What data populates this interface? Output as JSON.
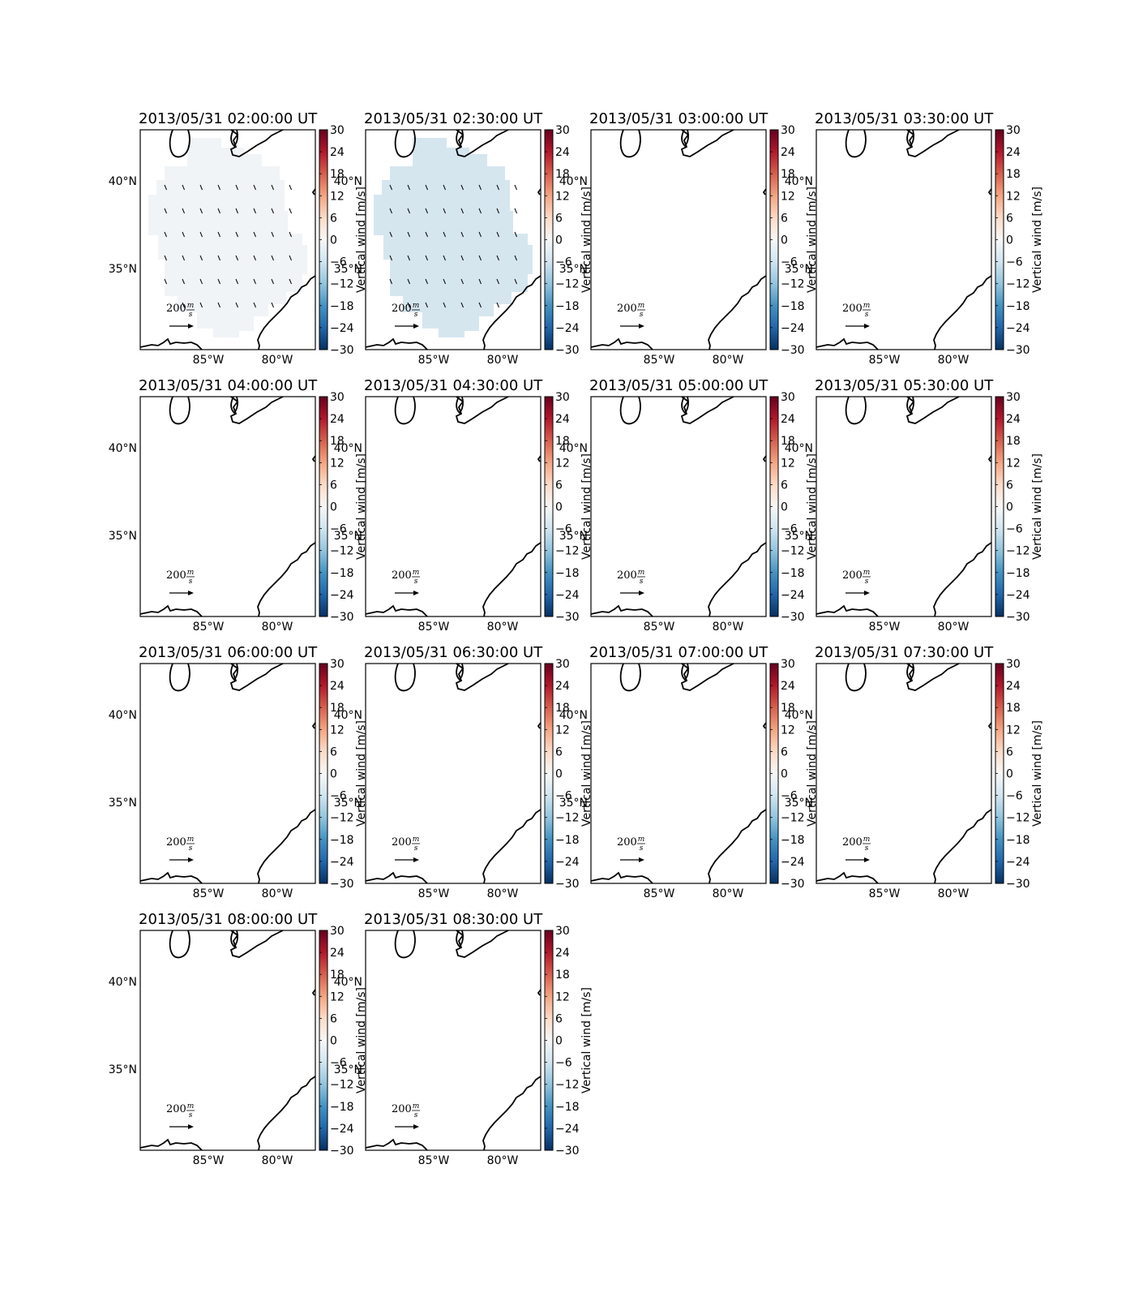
{
  "figure": {
    "colormap": "RdBu_r",
    "colormap_stops": [
      "#053061",
      "#2166ac",
      "#4393c3",
      "#92c5de",
      "#d1e5f0",
      "#f7f7f7",
      "#fddbc7",
      "#f4a582",
      "#d6604d",
      "#b2182b",
      "#67001f"
    ],
    "colorbar_ticks": [
      "30",
      "24",
      "18",
      "12",
      "6",
      "0",
      "−6",
      "−12",
      "−18",
      "−24",
      "−30"
    ],
    "colorbar_label": "Vertical wind [m/s]",
    "lat_ticks": [
      "40°N",
      "35°N"
    ],
    "lon_ticks": [
      "85°W",
      "80°W"
    ],
    "scale_value": "200",
    "scale_num": "m",
    "scale_den": "s",
    "field_colors": [
      "#f0f4f7",
      "#d6e6ef"
    ]
  },
  "chart_data": [
    {
      "type": "heatmap",
      "title": "2013/05/31 02:00:00 UT",
      "field": "weak negative vertical wind",
      "vertical_wind_mean": -1,
      "vectors": true
    },
    {
      "type": "heatmap",
      "title": "2013/05/31 02:30:00 UT",
      "field": "weak negative vertical wind",
      "vertical_wind_mean": -4,
      "vectors": true
    },
    {
      "type": "heatmap",
      "title": "2013/05/31 03:00:00 UT",
      "field": "none",
      "vectors": false
    },
    {
      "type": "heatmap",
      "title": "2013/05/31 03:30:00 UT",
      "field": "none",
      "vectors": false
    },
    {
      "type": "heatmap",
      "title": "2013/05/31 04:00:00 UT",
      "field": "none",
      "vectors": false
    },
    {
      "type": "heatmap",
      "title": "2013/05/31 04:30:00 UT",
      "field": "none",
      "vectors": false
    },
    {
      "type": "heatmap",
      "title": "2013/05/31 05:00:00 UT",
      "field": "none",
      "vectors": false
    },
    {
      "type": "heatmap",
      "title": "2013/05/31 05:30:00 UT",
      "field": "none",
      "vectors": false
    },
    {
      "type": "heatmap",
      "title": "2013/05/31 06:00:00 UT",
      "field": "none",
      "vectors": false
    },
    {
      "type": "heatmap",
      "title": "2013/05/31 06:30:00 UT",
      "field": "none",
      "vectors": false
    },
    {
      "type": "heatmap",
      "title": "2013/05/31 07:00:00 UT",
      "field": "none",
      "vectors": false
    },
    {
      "type": "heatmap",
      "title": "2013/05/31 07:30:00 UT",
      "field": "none",
      "vectors": false
    },
    {
      "type": "heatmap",
      "title": "2013/05/31 08:00:00 UT",
      "field": "none",
      "vectors": false
    },
    {
      "type": "heatmap",
      "title": "2013/05/31 08:30:00 UT",
      "field": "none",
      "vectors": false
    }
  ]
}
